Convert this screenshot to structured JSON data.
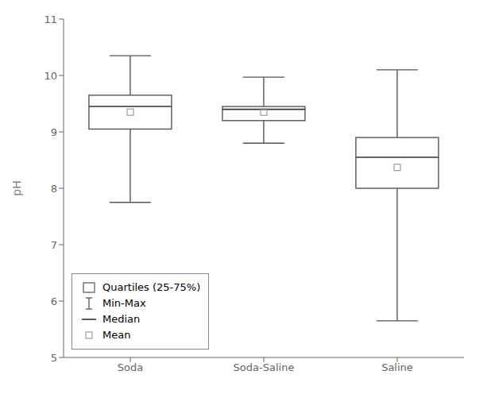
{
  "chart_data": {
    "type": "box",
    "categories": [
      "Soda",
      "Soda-Saline",
      "Saline"
    ],
    "ylabel": "pH",
    "ylim": [
      5,
      11
    ],
    "yticks": [
      5,
      6,
      7,
      8,
      9,
      10,
      11
    ],
    "legend": "lower left",
    "series": [
      {
        "name": "Quartiles (25-75%)",
        "color": "#555555",
        "q1": [
          9.05,
          9.2,
          8.0
        ],
        "q3": [
          9.65,
          9.45,
          8.9
        ]
      },
      {
        "name": "Min-Max",
        "color": "#555555",
        "min": [
          7.75,
          8.8,
          5.65
        ],
        "max": [
          10.35,
          9.97,
          10.1
        ]
      },
      {
        "name": "Median",
        "color": "#333333",
        "values": [
          9.45,
          9.4,
          8.55
        ]
      },
      {
        "name": "Mean",
        "color": "#888888",
        "marker": "square",
        "values": [
          9.35,
          9.35,
          8.37
        ]
      }
    ]
  }
}
